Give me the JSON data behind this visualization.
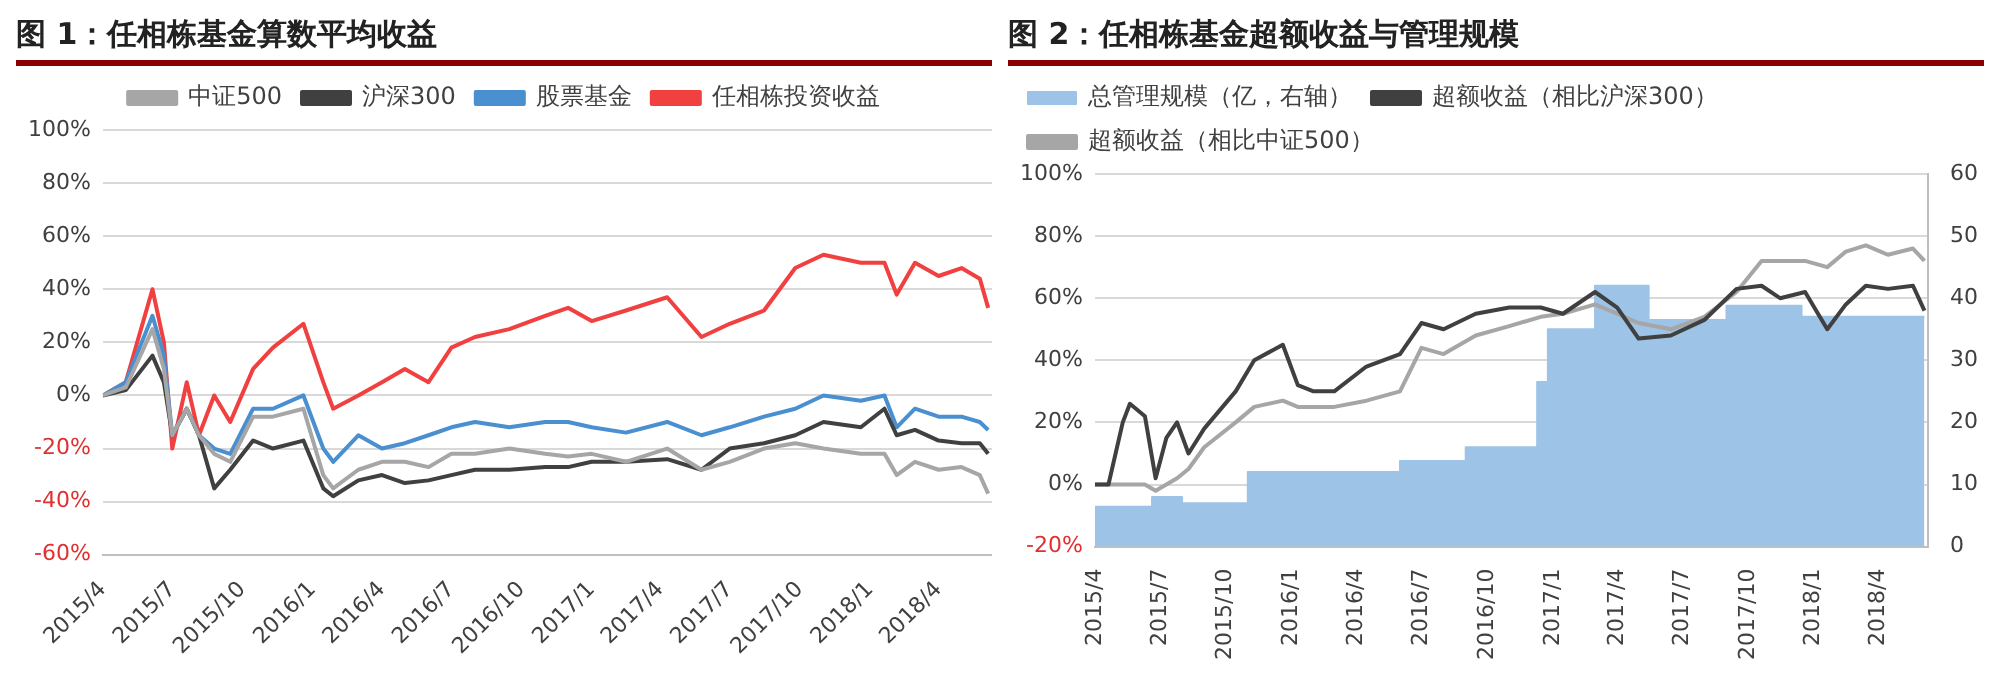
{
  "chart_data": [
    {
      "type": "line",
      "title": "图 1：任相栋基金算数平均收益",
      "x": [
        "2015-04-01",
        "2015-05-01",
        "2015-06-05",
        "2015-06-20",
        "2015-07-01",
        "2015-07-20",
        "2015-08-05",
        "2015-08-25",
        "2015-09-15",
        "2015-10-15",
        "2015-11-10",
        "2015-12-20",
        "2016-01-15",
        "2016-01-28",
        "2016-03-01",
        "2016-04-01",
        "2016-05-01",
        "2016-06-01",
        "2016-07-01",
        "2016-08-01",
        "2016-09-15",
        "2016-11-01",
        "2016-12-01",
        "2017-01-01",
        "2017-02-15",
        "2017-04-10",
        "2017-05-25",
        "2017-07-01",
        "2017-08-15",
        "2017-09-25",
        "2017-11-01",
        "2017-12-20",
        "2018-01-20",
        "2018-02-05",
        "2018-03-01",
        "2018-04-01",
        "2018-05-01",
        "2018-05-25",
        "2018-06-05"
      ],
      "series": [
        {
          "name": "中证500",
          "color": "#a6a6a6",
          "values": [
            0,
            3,
            25,
            10,
            -15,
            -5,
            -15,
            -22,
            -25,
            -8,
            -8,
            -5,
            -30,
            -35,
            -28,
            -25,
            -25,
            -27,
            -22,
            -22,
            -20,
            -22,
            -23,
            -22,
            -25,
            -20,
            -28,
            -25,
            -20,
            -18,
            -20,
            -22,
            -22,
            -30,
            -25,
            -28,
            -27,
            -30,
            -37
          ]
        },
        {
          "name": "沪深300",
          "color": "#404040",
          "values": [
            0,
            2,
            15,
            5,
            -15,
            -5,
            -15,
            -35,
            -28,
            -17,
            -20,
            -17,
            -35,
            -38,
            -32,
            -30,
            -33,
            -32,
            -30,
            -28,
            -28,
            -27,
            -27,
            -25,
            -25,
            -24,
            -28,
            -20,
            -18,
            -15,
            -10,
            -12,
            -5,
            -15,
            -13,
            -17,
            -18,
            -18,
            -22
          ]
        },
        {
          "name": "股票基金",
          "color": "#4a8fd0",
          "values": [
            0,
            5,
            30,
            15,
            -15,
            -5,
            -15,
            -20,
            -22,
            -5,
            -5,
            0,
            -20,
            -25,
            -15,
            -20,
            -18,
            -15,
            -12,
            -10,
            -12,
            -10,
            -10,
            -12,
            -14,
            -10,
            -15,
            -12,
            -8,
            -5,
            0,
            -2,
            0,
            -12,
            -5,
            -8,
            -8,
            -10,
            -13
          ]
        },
        {
          "name": "任相栋投资收益",
          "color": "#f04040",
          "values": [
            0,
            5,
            40,
            20,
            -20,
            5,
            -15,
            0,
            -10,
            10,
            18,
            27,
            5,
            -5,
            0,
            5,
            10,
            5,
            18,
            22,
            25,
            30,
            33,
            28,
            32,
            37,
            22,
            27,
            32,
            48,
            53,
            50,
            50,
            38,
            50,
            45,
            48,
            44,
            33
          ]
        }
      ],
      "xlim": [
        "2015-04-01",
        "2018-06-10"
      ],
      "xticks": [
        {
          "value": "2015-04",
          "label": "2015/4"
        },
        {
          "value": "2015-07",
          "label": "2015/7"
        },
        {
          "value": "2015-10",
          "label": "2015/10"
        },
        {
          "value": "2016-01",
          "label": "2016/1"
        },
        {
          "value": "2016-04",
          "label": "2016/4"
        },
        {
          "value": "2016-07",
          "label": "2016/7"
        },
        {
          "value": "2016-10",
          "label": "2016/10"
        },
        {
          "value": "2017-01",
          "label": "2017/1"
        },
        {
          "value": "2017-04",
          "label": "2017/4"
        },
        {
          "value": "2017-07",
          "label": "2017/7"
        },
        {
          "value": "2017-10",
          "label": "2017/10"
        },
        {
          "value": "2018-01",
          "label": "2018/1"
        },
        {
          "value": "2018-04",
          "label": "2018/4"
        }
      ],
      "ylim": [
        -60,
        100
      ],
      "yticks": [
        {
          "value": -60,
          "label": "-60%"
        },
        {
          "value": -40,
          "label": "-40%"
        },
        {
          "value": -20,
          "label": "-20%"
        },
        {
          "value": 0,
          "label": "0%"
        },
        {
          "value": 20,
          "label": "20%"
        },
        {
          "value": 40,
          "label": "40%"
        },
        {
          "value": 60,
          "label": "60%"
        },
        {
          "value": 80,
          "label": "80%"
        },
        {
          "value": 100,
          "label": "100%"
        }
      ],
      "grid": "y",
      "legend": "top"
    },
    {
      "type": "line",
      "title": "图 2：任相栋基金超额收益与管理规模",
      "series": [
        {
          "name": "总管理规模（亿，右轴）",
          "type": "area",
          "axis": "y2",
          "color": "#9dc3e6",
          "x": [
            "2015-04-01",
            "2015-06-20",
            "2015-06-20",
            "2015-08-01",
            "2015-08-01",
            "2015-11-01",
            "2015-11-01",
            "2016-06-01",
            "2016-06-01",
            "2016-09-01",
            "2016-09-01",
            "2016-12-10",
            "2016-12-10",
            "2016-12-25",
            "2016-12-25",
            "2017-03-01",
            "2017-03-01",
            "2017-05-15",
            "2017-05-15",
            "2017-09-01",
            "2017-09-01",
            "2017-12-15",
            "2017-12-15",
            "2018-06-05"
          ],
          "values": [
            6.4,
            6.4,
            8,
            8,
            7,
            7,
            12,
            12,
            13.8,
            13.8,
            16,
            16,
            26.5,
            26.5,
            35,
            35,
            42,
            42,
            36.5,
            36.5,
            38.8,
            38.8,
            37,
            37
          ]
        },
        {
          "name": "超额收益（相比沪深300）",
          "color": "#404040",
          "x": [
            "2015-04-01",
            "2015-04-20",
            "2015-05-10",
            "2015-05-20",
            "2015-06-10",
            "2015-06-25",
            "2015-07-10",
            "2015-07-25",
            "2015-08-10",
            "2015-09-01",
            "2015-10-15",
            "2015-11-10",
            "2015-12-20",
            "2016-01-10",
            "2016-02-01",
            "2016-03-01",
            "2016-04-15",
            "2016-06-01",
            "2016-07-01",
            "2016-08-01",
            "2016-09-15",
            "2016-11-01",
            "2016-12-15",
            "2017-01-15",
            "2017-03-01",
            "2017-04-01",
            "2017-05-01",
            "2017-06-15",
            "2017-08-01",
            "2017-09-15",
            "2017-10-20",
            "2017-11-15",
            "2017-12-20",
            "2018-01-20",
            "2018-02-15",
            "2018-03-15",
            "2018-04-15",
            "2018-05-20",
            "2018-06-05"
          ],
          "values": [
            0,
            0,
            20,
            26,
            22,
            2,
            15,
            20,
            10,
            18,
            30,
            40,
            45,
            32,
            30,
            30,
            38,
            42,
            52,
            50,
            55,
            57,
            57,
            55,
            62,
            57,
            47,
            48,
            53,
            63,
            64,
            60,
            62,
            50,
            58,
            64,
            63,
            64,
            56
          ]
        },
        {
          "name": "超额收益（相比中证500）",
          "color": "#a6a6a6",
          "x": [
            "2015-04-01",
            "2015-04-20",
            "2015-05-10",
            "2015-05-20",
            "2015-06-10",
            "2015-06-25",
            "2015-07-10",
            "2015-07-25",
            "2015-08-10",
            "2015-09-01",
            "2015-10-15",
            "2015-11-10",
            "2015-12-20",
            "2016-01-10",
            "2016-02-01",
            "2016-03-01",
            "2016-04-15",
            "2016-06-01",
            "2016-07-01",
            "2016-08-01",
            "2016-09-15",
            "2016-11-01",
            "2016-12-15",
            "2017-01-15",
            "2017-03-01",
            "2017-04-01",
            "2017-05-01",
            "2017-06-15",
            "2017-08-01",
            "2017-09-15",
            "2017-10-20",
            "2017-11-15",
            "2017-12-20",
            "2018-01-20",
            "2018-02-15",
            "2018-03-15",
            "2018-04-15",
            "2018-05-20",
            "2018-06-05"
          ],
          "values": [
            0,
            0,
            0,
            0,
            0,
            -2,
            0,
            2,
            5,
            12,
            20,
            25,
            27,
            25,
            25,
            25,
            27,
            30,
            44,
            42,
            48,
            51,
            54,
            55,
            58,
            55,
            52,
            50,
            54,
            62,
            72,
            72,
            72,
            70,
            75,
            77,
            74,
            76,
            72
          ]
        }
      ],
      "xlim": [
        "2015-04-01",
        "2018-06-10"
      ],
      "xticks": [
        {
          "value": "2015-04",
          "label": "2015/4"
        },
        {
          "value": "2015-07",
          "label": "2015/7"
        },
        {
          "value": "2015-10",
          "label": "2015/10"
        },
        {
          "value": "2016-01",
          "label": "2016/1"
        },
        {
          "value": "2016-04",
          "label": "2016/4"
        },
        {
          "value": "2016-07",
          "label": "2016/7"
        },
        {
          "value": "2016-10",
          "label": "2016/10"
        },
        {
          "value": "2017-01",
          "label": "2017/1"
        },
        {
          "value": "2017-04",
          "label": "2017/4"
        },
        {
          "value": "2017-07",
          "label": "2017/7"
        },
        {
          "value": "2017-10",
          "label": "2017/10"
        },
        {
          "value": "2018-01",
          "label": "2018/1"
        },
        {
          "value": "2018-04",
          "label": "2018/4"
        }
      ],
      "ylim": [
        -20,
        100
      ],
      "yticks": [
        {
          "value": -20,
          "label": "-20%"
        },
        {
          "value": 0,
          "label": "0%"
        },
        {
          "value": 20,
          "label": "20%"
        },
        {
          "value": 40,
          "label": "40%"
        },
        {
          "value": 60,
          "label": "60%"
        },
        {
          "value": 80,
          "label": "80%"
        },
        {
          "value": 100,
          "label": "100%"
        }
      ],
      "y2lim": [
        0,
        60
      ],
      "y2ticks": [
        0,
        10,
        20,
        30,
        40,
        50,
        60
      ],
      "grid": "y",
      "legend": "top left"
    }
  ]
}
